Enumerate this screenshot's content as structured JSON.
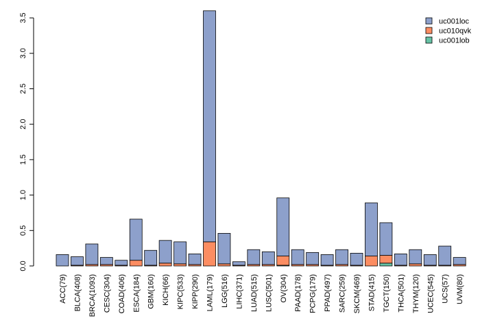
{
  "chart_data": {
    "type": "bar",
    "stacked": true,
    "title": "",
    "xlabel": "",
    "ylabel": "",
    "ylim": [
      0,
      3.6
    ],
    "yticks": [
      "0.0",
      "0.5",
      "1.0",
      "1.5",
      "2.0",
      "2.5",
      "3.0",
      "3.5"
    ],
    "grid": false,
    "legend_position": "top-right",
    "categories": [
      "ACC(79)",
      "BLCA(408)",
      "BRCA(1093)",
      "CESC(304)",
      "COAD(406)",
      "ESCA(184)",
      "GBM(160)",
      "KICH(66)",
      "KIPC(533)",
      "KIPP(290)",
      "LAML(179)",
      "LGG(516)",
      "LIHC(371)",
      "LUAD(515)",
      "LUSC(501)",
      "OV(304)",
      "PAAD(178)",
      "PCPG(179)",
      "PPAD(497)",
      "SARC(259)",
      "SKCM(469)",
      "STAD(415)",
      "TGCT(150)",
      "THCA(501)",
      "THYM(120)",
      "UCEC(545)",
      "UCS(57)",
      "UVM(80)"
    ],
    "series": [
      {
        "name": "uc001lob",
        "color": "#66c2a5",
        "values": [
          0,
          0,
          0,
          0,
          0,
          0,
          0,
          0,
          0,
          0,
          0,
          0,
          0,
          0,
          0,
          0.01,
          0,
          0,
          0,
          0,
          0,
          0,
          0.04,
          0,
          0,
          0,
          0,
          0
        ]
      },
      {
        "name": "uc010qvk",
        "color": "#fc8d62",
        "values": [
          0,
          0.01,
          0.02,
          0.02,
          0.01,
          0.08,
          0.01,
          0.04,
          0.03,
          0.02,
          0.34,
          0.03,
          0.01,
          0.02,
          0.02,
          0.13,
          0.02,
          0.02,
          0.01,
          0.02,
          0.01,
          0.14,
          0.11,
          0.01,
          0.03,
          0.01,
          0.01,
          0.02
        ]
      },
      {
        "name": "uc001loc",
        "color": "#8da0cb",
        "values": [
          0.16,
          0.12,
          0.29,
          0.1,
          0.07,
          0.58,
          0.21,
          0.32,
          0.31,
          0.15,
          3.26,
          0.43,
          0.05,
          0.21,
          0.18,
          0.82,
          0.21,
          0.17,
          0.15,
          0.21,
          0.17,
          0.75,
          0.46,
          0.16,
          0.2,
          0.15,
          0.27,
          0.1
        ]
      }
    ],
    "legend": [
      "uc001loc",
      "uc010qvk",
      "uc001lob"
    ]
  }
}
